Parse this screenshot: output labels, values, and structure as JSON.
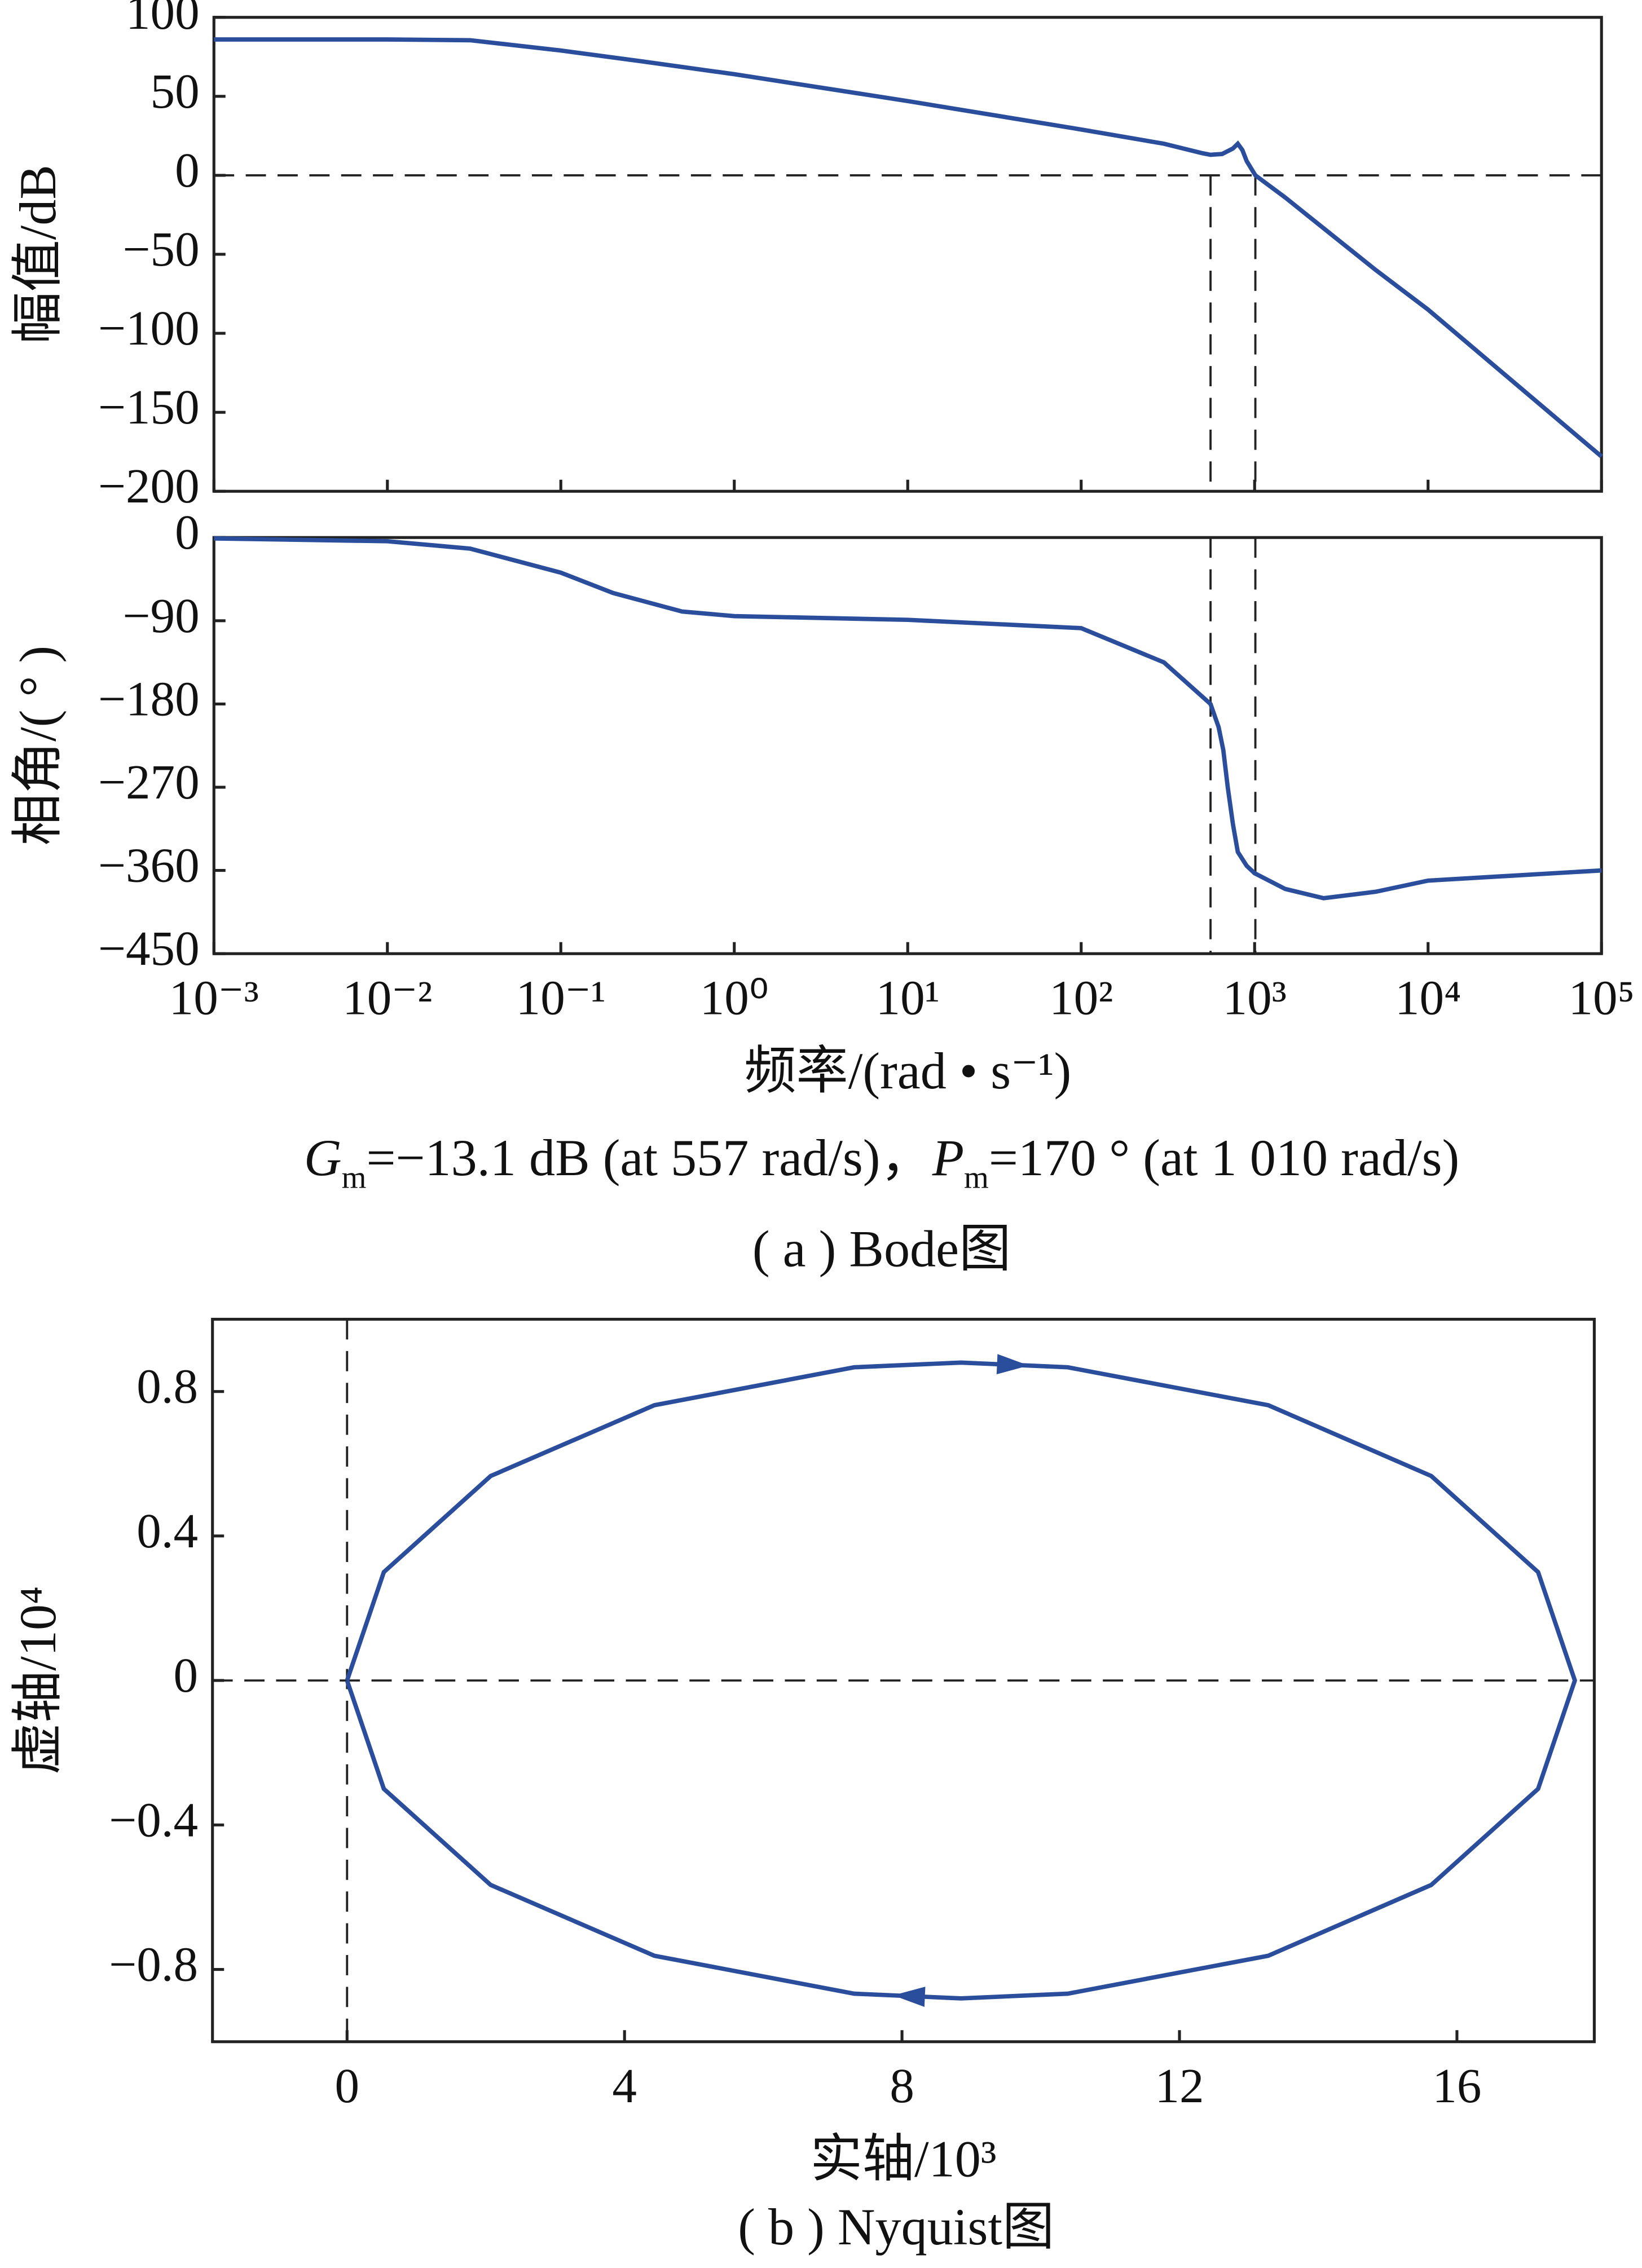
{
  "chart_data": [
    {
      "type": "line",
      "ylabel": "幅值/dB",
      "xscale": "log",
      "xlim": [
        0.001,
        100000
      ],
      "ylim": [
        -200,
        100
      ],
      "yticks": [
        {
          "value": -200,
          "label": "−200"
        },
        {
          "value": -150,
          "label": "−150"
        },
        {
          "value": -100,
          "label": "−100"
        },
        {
          "value": -50,
          "label": "−50"
        },
        0,
        50,
        100
      ],
      "ref_x": [
        557,
        1010
      ],
      "ref_y": [
        0
      ],
      "color": "#2a4d9c",
      "x": [
        0.001,
        0.01,
        0.03,
        0.1,
        0.3,
        1,
        10,
        100,
        300,
        500,
        557,
        650,
        750,
        800,
        850,
        900,
        1010,
        1500,
        2000,
        5000,
        10000,
        100000
      ],
      "values": [
        86,
        86,
        85.5,
        79,
        72,
        64,
        47,
        29,
        20,
        14,
        13,
        13.5,
        17,
        20,
        16,
        9,
        0,
        -14,
        -25,
        -60,
        -85,
        -178
      ]
    },
    {
      "type": "line",
      "ylabel": "相角/( ° )",
      "xlabel": "频率/(rad • s⁻¹)",
      "xscale": "log",
      "xlim": [
        0.001,
        100000
      ],
      "ylim": [
        -450,
        0
      ],
      "xticks": [
        {
          "value": 0.001,
          "label": "10⁻³"
        },
        {
          "value": 0.01,
          "label": "10⁻²"
        },
        {
          "value": 0.1,
          "label": "10⁻¹"
        },
        {
          "value": 1,
          "label": "10⁰"
        },
        {
          "value": 10,
          "label": "10¹"
        },
        {
          "value": 100,
          "label": "10²"
        },
        {
          "value": 1000,
          "label": "10³"
        },
        {
          "value": 10000,
          "label": "10⁴"
        },
        {
          "value": 100000,
          "label": "10⁵"
        }
      ],
      "yticks": [
        {
          "value": -450,
          "label": "−450"
        },
        {
          "value": -360,
          "label": "−360"
        },
        {
          "value": -270,
          "label": "−270"
        },
        {
          "value": -180,
          "label": "−180"
        },
        {
          "value": -90,
          "label": "−90"
        },
        0
      ],
      "ref_x": [
        557,
        1010
      ],
      "color": "#2a4d9c",
      "x": [
        0.001,
        0.01,
        0.03,
        0.1,
        0.2,
        0.5,
        1,
        10,
        100,
        300,
        557,
        620,
        660,
        700,
        750,
        800,
        900,
        1000,
        1500,
        2500,
        5000,
        10000,
        100000
      ],
      "values": [
        -1,
        -4,
        -12,
        -38,
        -60,
        -80,
        -85,
        -89,
        -98,
        -135,
        -180,
        -205,
        -230,
        -270,
        -310,
        -340,
        -355,
        -363,
        -380,
        -390,
        -383,
        -371,
        -360
      ]
    },
    {
      "type": "line",
      "ylabel": "虚轴/10⁴",
      "xlabel": "实轴/10³",
      "xlim": [
        -1.94,
        17.98
      ],
      "ylim": [
        -1,
        1
      ],
      "xticks": [
        0,
        4,
        8,
        12,
        16
      ],
      "yticks": [
        {
          "value": -0.8,
          "label": "−0.8"
        },
        {
          "value": -0.4,
          "label": "−0.4"
        },
        0,
        0.4,
        0.8
      ],
      "ref_x": [
        0
      ],
      "ref_y": [
        0
      ],
      "color": "#2a4d9c",
      "x": [
        0,
        0.53,
        2.07,
        4.43,
        7.31,
        8.85,
        10.39,
        13.28,
        15.63,
        17.17,
        17.7,
        17.17,
        15.63,
        13.28,
        10.39,
        8.85,
        7.31,
        4.43,
        2.07,
        0.53,
        0
      ],
      "values": [
        0,
        0.3,
        0.566,
        0.762,
        0.867,
        0.88,
        0.867,
        0.762,
        0.566,
        0.3,
        0,
        -0.3,
        -0.566,
        -0.762,
        -0.867,
        -0.88,
        -0.867,
        -0.762,
        -0.566,
        -0.3,
        0
      ]
    }
  ],
  "annotation": [
    "G",
    "m",
    "=−13.1 dB (at 557 rad/s)，",
    "P",
    "m",
    "=170 ° (at 1 010 rad/s)"
  ],
  "captions": [
    "( a ) Bode图",
    "( b ) Nyquist图"
  ]
}
